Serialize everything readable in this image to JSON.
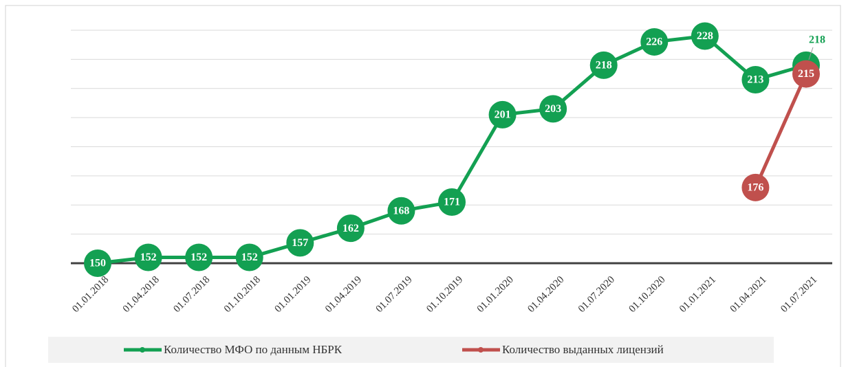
{
  "chart_data": {
    "type": "line",
    "categories": [
      "01.01.2018",
      "01.04.2018",
      "01.07.2018",
      "01.10.2018",
      "01.01.2019",
      "01.04.2019",
      "01.07.2019",
      "01.10.2019",
      "01.01.2020",
      "01.04.2020",
      "01.07.2020",
      "01.10.2020",
      "01.01.2021",
      "01.04.2021",
      "01.07.2021"
    ],
    "series": [
      {
        "name": "Количество МФО по данным НБРК",
        "color": "#13a052",
        "values": [
          150,
          152,
          152,
          152,
          157,
          162,
          168,
          171,
          201,
          203,
          218,
          226,
          228,
          213,
          218
        ]
      },
      {
        "name": "Количество выданных лицензий",
        "color": "#c0504d",
        "values": [
          null,
          null,
          null,
          null,
          null,
          null,
          null,
          null,
          null,
          null,
          null,
          null,
          null,
          176,
          215
        ]
      }
    ],
    "ylim": [
      150,
      230
    ],
    "yticks": [
      150,
      160,
      170,
      180,
      190,
      200,
      210,
      220,
      230
    ],
    "grid": true,
    "legend": "bottom"
  }
}
